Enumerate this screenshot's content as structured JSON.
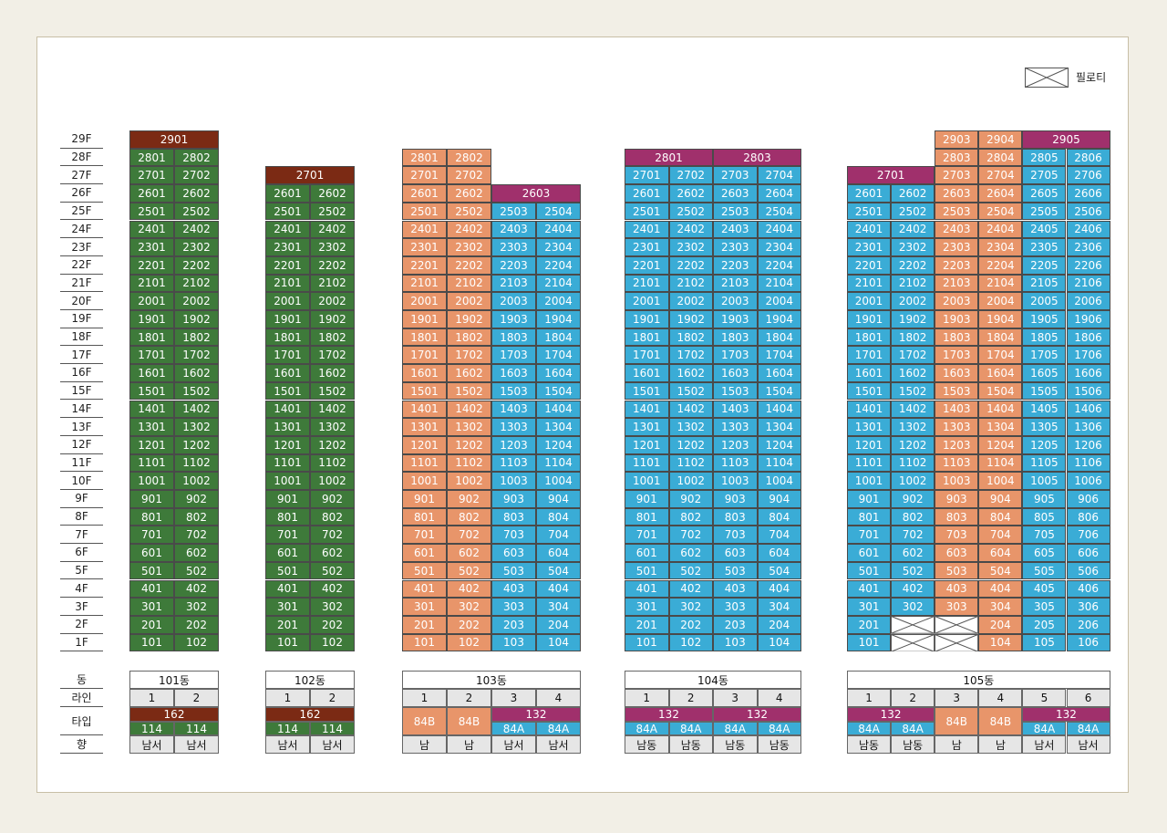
{
  "legend": {
    "label": "필로티",
    "icon": "piloti-x-icon"
  },
  "floors": [
    "29F",
    "28F",
    "27F",
    "26F",
    "25F",
    "24F",
    "23F",
    "22F",
    "21F",
    "20F",
    "19F",
    "18F",
    "17F",
    "16F",
    "15F",
    "14F",
    "13F",
    "12F",
    "11F",
    "10F",
    "9F",
    "8F",
    "7F",
    "6F",
    "5F",
    "4F",
    "3F",
    "2F",
    "1F"
  ],
  "row_labels": {
    "dong": "동",
    "line": "라인",
    "type": "타입",
    "direction": "향"
  },
  "colors": {
    "green": "#3e7a3a",
    "dark_red": "#7b2a14",
    "orange": "#e8956a",
    "blue": "#3aacd6",
    "purple": "#a0306c"
  },
  "buildings": [
    {
      "name": "101동",
      "lines": [
        "1",
        "2"
      ],
      "type_header": [
        {
          "label": "162",
          "span": 2,
          "color": "dark_red"
        }
      ],
      "types": [
        {
          "label": "114",
          "color": "green"
        },
        {
          "label": "114",
          "color": "green"
        }
      ],
      "directions": [
        "남서",
        "남서"
      ],
      "top_floors": [
        28,
        28
      ],
      "colors": [
        "green",
        "green"
      ],
      "penthouses": [
        {
          "label": "2901",
          "floor": 29,
          "start": 0,
          "span": 2,
          "color": "dark_red"
        }
      ],
      "pilotis": []
    },
    {
      "name": "102동",
      "lines": [
        "1",
        "2"
      ],
      "type_header": [
        {
          "label": "162",
          "span": 2,
          "color": "dark_red"
        }
      ],
      "types": [
        {
          "label": "114",
          "color": "green"
        },
        {
          "label": "114",
          "color": "green"
        }
      ],
      "directions": [
        "남서",
        "남서"
      ],
      "top_floors": [
        26,
        26
      ],
      "colors": [
        "green",
        "green"
      ],
      "penthouses": [
        {
          "label": "2701",
          "floor": 27,
          "start": 0,
          "span": 2,
          "color": "dark_red"
        }
      ],
      "pilotis": []
    },
    {
      "name": "103동",
      "lines": [
        "1",
        "2",
        "3",
        "4"
      ],
      "type_header": [
        {
          "label": "",
          "span": 2,
          "color": "none"
        },
        {
          "label": "132",
          "span": 2,
          "color": "purple"
        }
      ],
      "types": [
        {
          "label": "84B",
          "color": "orange",
          "merged": true
        },
        {
          "label": "84B",
          "color": "orange",
          "merged": true
        },
        {
          "label": "84A",
          "color": "blue"
        },
        {
          "label": "84A",
          "color": "blue"
        }
      ],
      "directions": [
        "남",
        "남",
        "남서",
        "남서"
      ],
      "top_floors": [
        28,
        28,
        25,
        25
      ],
      "colors": [
        "orange",
        "orange",
        "blue",
        "blue"
      ],
      "penthouses": [
        {
          "label": "2603",
          "floor": 26,
          "start": 2,
          "span": 2,
          "color": "purple"
        }
      ],
      "pilotis": []
    },
    {
      "name": "104동",
      "lines": [
        "1",
        "2",
        "3",
        "4"
      ],
      "type_header": [
        {
          "label": "132",
          "span": 2,
          "color": "purple"
        },
        {
          "label": "132",
          "span": 2,
          "color": "purple"
        }
      ],
      "types": [
        {
          "label": "84A",
          "color": "blue"
        },
        {
          "label": "84A",
          "color": "blue"
        },
        {
          "label": "84A",
          "color": "blue"
        },
        {
          "label": "84A",
          "color": "blue"
        }
      ],
      "directions": [
        "남동",
        "남동",
        "남동",
        "남동"
      ],
      "top_floors": [
        27,
        27,
        27,
        27
      ],
      "colors": [
        "blue",
        "blue",
        "blue",
        "blue"
      ],
      "penthouses": [
        {
          "label": "2801",
          "floor": 28,
          "start": 0,
          "span": 2,
          "color": "purple"
        },
        {
          "label": "2803",
          "floor": 28,
          "start": 2,
          "span": 2,
          "color": "purple"
        }
      ],
      "pilotis": []
    },
    {
      "name": "105동",
      "lines": [
        "1",
        "2",
        "3",
        "4",
        "5",
        "6"
      ],
      "type_header": [
        {
          "label": "132",
          "span": 2,
          "color": "purple"
        },
        {
          "label": "",
          "span": 2,
          "color": "none"
        },
        {
          "label": "132",
          "span": 2,
          "color": "purple"
        }
      ],
      "types": [
        {
          "label": "84A",
          "color": "blue"
        },
        {
          "label": "84A",
          "color": "blue"
        },
        {
          "label": "84B",
          "color": "orange",
          "merged": true
        },
        {
          "label": "84B",
          "color": "orange",
          "merged": true
        },
        {
          "label": "84A",
          "color": "blue"
        },
        {
          "label": "84A",
          "color": "blue"
        }
      ],
      "directions": [
        "남동",
        "남동",
        "남",
        "남",
        "남서",
        "남서"
      ],
      "top_floors": [
        26,
        26,
        28,
        28,
        28,
        28
      ],
      "colors": [
        "blue",
        "blue",
        "orange",
        "orange",
        "blue",
        "blue"
      ],
      "penthouses": [
        {
          "label": "2701",
          "floor": 27,
          "start": 0,
          "span": 2,
          "color": "purple"
        },
        {
          "label": "2905",
          "floor": 29,
          "start": 4,
          "span": 2,
          "color": "purple"
        }
      ],
      "extra_top": [
        {
          "label": "2903",
          "floor": 29,
          "col": 2
        },
        {
          "label": "2904",
          "floor": 29,
          "col": 3
        }
      ],
      "pilotis": [
        {
          "floor": 1,
          "col": 1
        },
        {
          "floor": 1,
          "col": 2
        },
        {
          "floor": 2,
          "col": 1
        },
        {
          "floor": 2,
          "col": 2
        }
      ]
    }
  ]
}
